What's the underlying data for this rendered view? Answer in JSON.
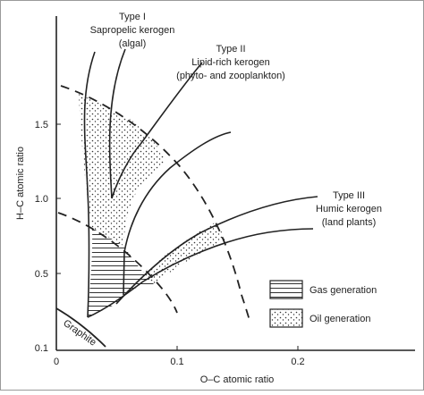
{
  "diagram": {
    "x_axis_label": "O–C atomic ratio",
    "y_axis_label": "H–C atomic ratio",
    "x_ticks": [
      "0",
      "0.1",
      "0.2"
    ],
    "y_ticks": [
      "0.1",
      "0.5",
      "1.0",
      "1.5"
    ],
    "kerogen_types": [
      {
        "type": "Type I",
        "name": "Sapropelic kerogen",
        "source": "(algal)"
      },
      {
        "type": "Type II",
        "name": "Lipid-rich kerogen",
        "source": "(phyto- and zooplankton)"
      },
      {
        "type": "Type III",
        "name": "Humic kerogen",
        "source": "(land plants)"
      }
    ],
    "graphite_label": "Graphite",
    "legend": [
      {
        "label": "Gas generation",
        "pattern": "horizontal-hatch"
      },
      {
        "label": "Oil generation",
        "pattern": "stipple"
      }
    ],
    "colors": {
      "ink": "#222222",
      "background": "#ffffff",
      "border": "#9a9a9a"
    }
  }
}
